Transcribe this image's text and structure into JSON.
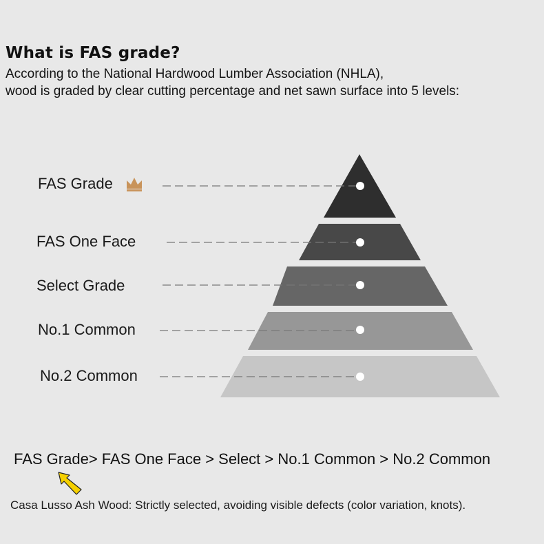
{
  "header": {
    "title": "What is FAS grade?",
    "subtitle_line1": "According to the National Hardwood Lumber Association (NHLA),",
    "subtitle_line2": "wood is graded by clear cutting percentage and net sawn surface into 5 levels:"
  },
  "pyramid": {
    "levels": [
      {
        "label": "FAS Grade",
        "color": "#2e2e2e",
        "icon": "crown-icon"
      },
      {
        "label": "FAS One Face",
        "color": "#484848"
      },
      {
        "label": "Select Grade",
        "color": "#666666"
      },
      {
        "label": "No.1 Common",
        "color": "#979797"
      },
      {
        "label": "No.2 Common",
        "color": "#c6c6c6"
      }
    ],
    "crown_color": "#c8935a"
  },
  "footer": {
    "order": "FAS Grade> FAS One Face > Select > No.1 Common > No.2 Common",
    "note": "Casa Lusso Ash Wood: Strictly selected, avoiding visible defects (color variation, knots)."
  },
  "cursor": {
    "icon": "mouse-pointer-icon",
    "color": "#f5d000"
  }
}
